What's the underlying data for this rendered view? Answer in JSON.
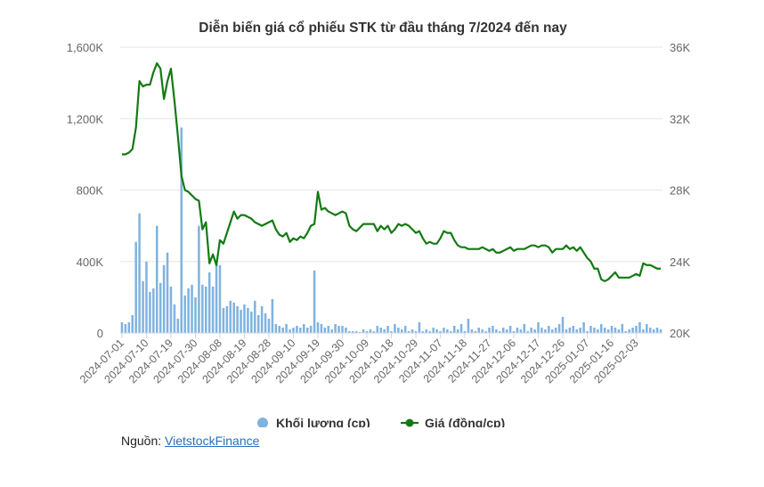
{
  "chart_data": {
    "type": "bar_line",
    "title": "Diễn biến giá cổ phiếu STK từ đầu tháng 7/2024 đến nay",
    "categories": [
      "2024-07-01",
      null,
      null,
      null,
      null,
      null,
      null,
      "2024-07-10",
      null,
      null,
      null,
      null,
      null,
      null,
      "2024-07-19",
      null,
      null,
      null,
      null,
      null,
      null,
      "2024-07-30",
      null,
      null,
      null,
      null,
      null,
      null,
      "2024-08-08",
      null,
      null,
      null,
      null,
      null,
      null,
      "2024-08-19",
      null,
      null,
      null,
      null,
      null,
      null,
      "2024-08-28",
      null,
      null,
      null,
      null,
      null,
      null,
      "2024-09-10",
      null,
      null,
      null,
      null,
      null,
      null,
      "2024-09-19",
      null,
      null,
      null,
      null,
      null,
      null,
      "2024-09-30",
      null,
      null,
      null,
      null,
      null,
      null,
      "2024-10-09",
      null,
      null,
      null,
      null,
      null,
      null,
      "2024-10-18",
      null,
      null,
      null,
      null,
      null,
      null,
      "2024-10-29",
      null,
      null,
      null,
      null,
      null,
      null,
      "2024-11-07",
      null,
      null,
      null,
      null,
      null,
      null,
      "2024-11-18",
      null,
      null,
      null,
      null,
      null,
      null,
      "2024-11-27",
      null,
      null,
      null,
      null,
      null,
      null,
      "2024-12-06",
      null,
      null,
      null,
      null,
      null,
      null,
      "2024-12-17",
      null,
      null,
      null,
      null,
      null,
      null,
      "2024-12-26",
      null,
      null,
      null,
      null,
      null,
      null,
      "2025-01-07",
      null,
      null,
      null,
      null,
      null,
      null,
      "2025-01-16",
      null,
      null,
      null,
      null,
      null,
      null,
      "2025-02-03",
      null,
      null,
      null,
      null,
      null,
      null,
      null
    ],
    "series": [
      {
        "name": "Khối lượng (cp)",
        "color": "#7fb3e0",
        "kind": "bar",
        "values": [
          60000,
          50000,
          60000,
          100000,
          510000,
          670000,
          290000,
          400000,
          230000,
          250000,
          600000,
          280000,
          380000,
          450000,
          260000,
          160000,
          80000,
          1150000,
          210000,
          250000,
          270000,
          200000,
          600000,
          270000,
          260000,
          340000,
          260000,
          400000,
          380000,
          140000,
          150000,
          180000,
          170000,
          150000,
          130000,
          160000,
          140000,
          120000,
          180000,
          100000,
          150000,
          110000,
          80000,
          190000,
          50000,
          40000,
          30000,
          50000,
          20000,
          30000,
          40000,
          30000,
          50000,
          30000,
          40000,
          350000,
          60000,
          50000,
          30000,
          40000,
          20000,
          50000,
          40000,
          40000,
          30000,
          10000,
          10000,
          10000,
          5000,
          20000,
          10000,
          20000,
          10000,
          40000,
          30000,
          20000,
          40000,
          10000,
          50000,
          30000,
          20000,
          40000,
          10000,
          20000,
          10000,
          60000,
          10000,
          20000,
          10000,
          30000,
          20000,
          10000,
          30000,
          20000,
          10000,
          40000,
          20000,
          50000,
          10000,
          80000,
          20000,
          10000,
          30000,
          20000,
          10000,
          30000,
          40000,
          20000,
          10000,
          30000,
          20000,
          40000,
          10000,
          30000,
          20000,
          50000,
          10000,
          30000,
          20000,
          60000,
          30000,
          20000,
          40000,
          20000,
          30000,
          50000,
          90000,
          20000,
          30000,
          40000,
          20000,
          30000,
          60000,
          10000,
          40000,
          30000,
          20000,
          50000,
          30000,
          20000,
          40000,
          30000,
          20000,
          50000,
          10000,
          20000,
          30000,
          40000,
          60000,
          20000,
          50000,
          30000,
          20000,
          30000,
          20000
        ]
      },
      {
        "name": "Giá (đồng/cp)",
        "color": "#137a13",
        "kind": "line",
        "axis": "y2",
        "values": [
          30000,
          30000,
          30100,
          30300,
          31500,
          34100,
          33800,
          33900,
          33900,
          34600,
          35100,
          34800,
          33100,
          34100,
          34800,
          33000,
          31000,
          28800,
          28000,
          27900,
          27700,
          27500,
          27400,
          25800,
          26200,
          23900,
          24400,
          23800,
          25200,
          25000,
          25600,
          26200,
          26800,
          26400,
          26600,
          26600,
          26500,
          26400,
          26200,
          26100,
          26000,
          26100,
          26200,
          26300,
          25800,
          25500,
          25400,
          25600,
          25100,
          25300,
          25200,
          25400,
          25300,
          25600,
          26000,
          26100,
          27900,
          26900,
          27000,
          26800,
          26700,
          26600,
          26700,
          26800,
          26700,
          26000,
          25800,
          25700,
          25900,
          26100,
          26100,
          26100,
          26100,
          25700,
          26000,
          25800,
          26000,
          25600,
          25800,
          26100,
          26000,
          26100,
          26000,
          25800,
          25600,
          25700,
          25300,
          25000,
          25100,
          25000,
          25000,
          25300,
          25700,
          25600,
          25600,
          25200,
          24900,
          24800,
          24800,
          24700,
          24700,
          24700,
          24700,
          24800,
          24700,
          24600,
          24700,
          24500,
          24500,
          24600,
          24700,
          24800,
          24600,
          24700,
          24700,
          24700,
          24800,
          24900,
          24900,
          24800,
          24900,
          24900,
          24800,
          24500,
          24700,
          24700,
          24700,
          24900,
          24700,
          24800,
          24600,
          24800,
          24500,
          24200,
          24000,
          23600,
          23600,
          23000,
          22900,
          23000,
          23200,
          23400,
          23100,
          23100,
          23100,
          23100,
          23200,
          23300,
          23200,
          23900,
          23800,
          23800,
          23700,
          23600,
          23600
        ]
      }
    ],
    "ylim": [
      0,
      1600000
    ],
    "yticks": [
      0,
      {
        "value": 400000,
        "label": "400K"
      },
      {
        "value": 800000,
        "label": "800K"
      },
      {
        "value": 1200000,
        "label": "1,200K"
      },
      {
        "value": 1600000,
        "label": "1,600K"
      }
    ],
    "y2lim": [
      20000,
      36000
    ],
    "y2ticks": [
      {
        "value": 20000,
        "label": "20K"
      },
      {
        "value": 24000,
        "label": "24K"
      },
      {
        "value": 28000,
        "label": "28K"
      },
      {
        "value": 32000,
        "label": "32K"
      },
      {
        "value": 36000,
        "label": "36K"
      }
    ],
    "grid": true,
    "legend": "bottom",
    "source": {
      "label": "Nguồn:",
      "link": "VietstockFinance"
    }
  }
}
